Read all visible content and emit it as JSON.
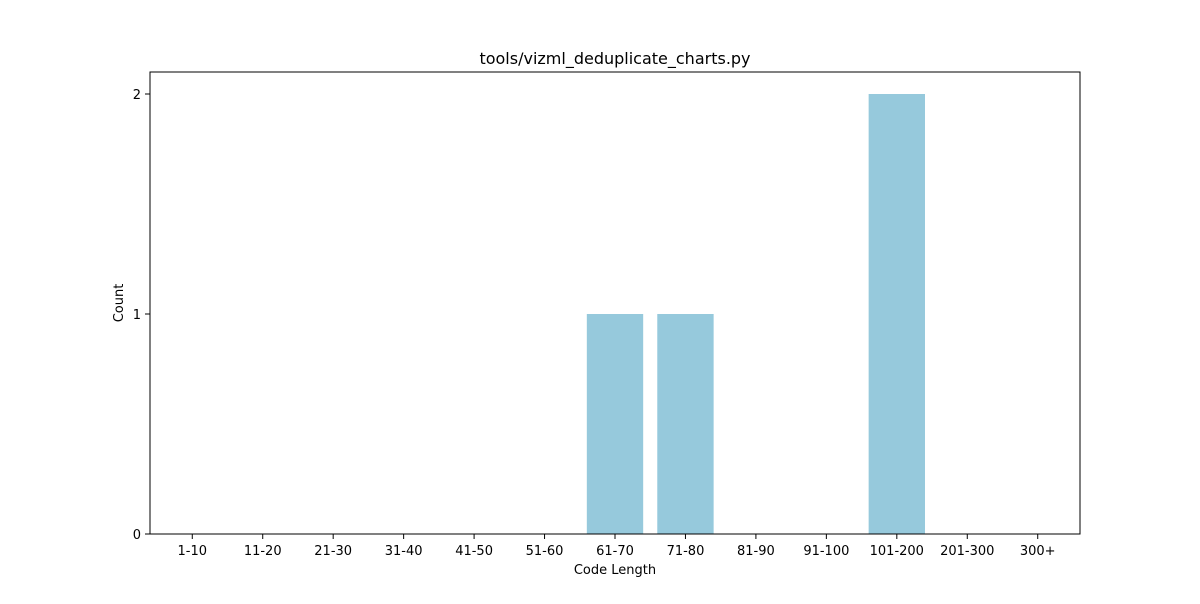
{
  "chart_data": {
    "type": "bar",
    "title": "tools/vizml_deduplicate_charts.py",
    "xlabel": "Code Length",
    "ylabel": "Count",
    "categories": [
      "1-10",
      "11-20",
      "21-30",
      "31-40",
      "41-50",
      "51-60",
      "61-70",
      "71-80",
      "81-90",
      "91-100",
      "101-200",
      "201-300",
      "300+"
    ],
    "values": [
      0,
      0,
      0,
      0,
      0,
      0,
      1,
      1,
      0,
      0,
      2,
      0,
      0
    ],
    "ylim": [
      0,
      2.1
    ],
    "yticks": [
      0,
      1,
      2
    ],
    "bar_color": "#96c9dc",
    "grid": false,
    "legend": "none"
  }
}
